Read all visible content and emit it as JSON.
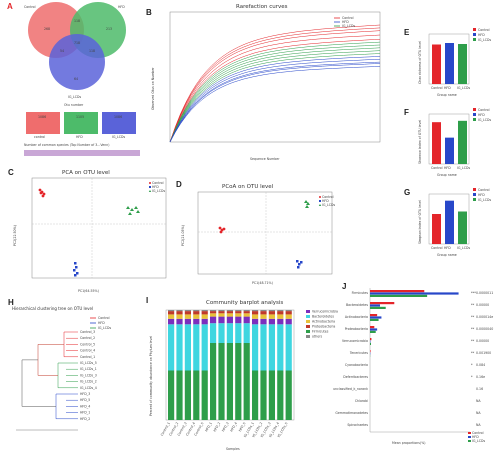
{
  "figure": {
    "letters": {
      "A": "A",
      "B": "B",
      "C": "C",
      "D": "D",
      "E": "E",
      "F": "F",
      "G": "G",
      "H": "H",
      "I": "I",
      "J": "J"
    }
  },
  "colors": {
    "control": "#e4252a",
    "hfd": "#2747c9",
    "ig": "#2e9e4a",
    "blue": "#5a63d9",
    "green": "#4dbb6a",
    "red": "#ef6d6d"
  },
  "venn": {
    "labels": [
      "Control",
      "HFD",
      "IG_LCDs"
    ],
    "values": {
      "a_only": "268",
      "b_only": "213",
      "c_only": "64",
      "ab": "118",
      "ac": "54",
      "bc": "118",
      "abc": "718"
    },
    "axis_label": "Otu number"
  },
  "bars_A": {
    "values": [
      1086,
      1105,
      1086
    ],
    "categories": [
      "control",
      "HFD",
      "IG_LCDs"
    ],
    "caption": "Number of common species (Top Number of 3...Venn)"
  },
  "chart_data": [
    {
      "type": "line",
      "panel": "B",
      "title": "Rarefaction curves",
      "xlabel": "Sequence Number",
      "ylabel": "Observed Otus on Number",
      "series": [
        {
          "name": "Control"
        },
        {
          "name": "HFD"
        },
        {
          "name": "IG_LCDs"
        }
      ]
    },
    {
      "type": "bar",
      "panel": "E",
      "ylabel": "Chao richness of OTU level",
      "xlabel": "Group name",
      "categories": [
        "Control",
        "HFD",
        "IG_LCDs"
      ],
      "values": [
        0.79,
        0.82,
        0.8
      ],
      "ylim": [
        0,
        1
      ]
    },
    {
      "type": "bar",
      "panel": "F",
      "ylabel": "Shannon index of OTU level",
      "xlabel": "Group name",
      "categories": [
        "Control",
        "HFD",
        "IG_LCDs"
      ],
      "values": [
        0.92,
        0.58,
        0.95
      ],
      "ylim": [
        0,
        1.1
      ]
    },
    {
      "type": "bar",
      "panel": "G",
      "ylabel": "Simpson index of OTU level",
      "xlabel": "Group name",
      "categories": [
        "Control",
        "HFD",
        "IG_LCDs"
      ],
      "values": [
        0.36,
        0.52,
        0.39
      ],
      "ylim": [
        0,
        0.6
      ]
    },
    {
      "type": "scatter",
      "panel": "C",
      "title": "PCA on OTU level",
      "xlabel": "PC1(64.55%)",
      "ylabel": "PC2(22.50%)"
    },
    {
      "type": "scatter",
      "panel": "D",
      "title": "PCoA on OTU level",
      "xlabel": "PC1(48.71%)",
      "ylabel": "PC2(21.05%)"
    },
    {
      "type": "bar",
      "panel": "I",
      "title": "Community barplot analysis",
      "xlabel": "Samples",
      "ylabel": "Percent of community abundance on Phylum level",
      "legend": [
        "Verrucomicrobia",
        "Bacteroidetes",
        "Actinobacteria",
        "Proteobacteria",
        "Firmicutes",
        "others"
      ]
    },
    {
      "type": "bar",
      "panel": "J",
      "xlabel": "Mean proportions(%)",
      "categories": [
        "Firmicutes",
        "Bacteroidetes",
        "Actinobacteria",
        "Proteobacteria",
        "Verrucomicrobia",
        "Tenericutes",
        "Cyanobacteria",
        "Deferribacteres",
        "unclassified_k_norank",
        "Chlorobi",
        "Gemmatimonadetes",
        "Spirochaetes"
      ],
      "pvalues": [
        "0.0000011",
        "0.00000",
        "0.000014e",
        "0.0000040",
        "0.00000",
        "0.001900",
        "0.084",
        "0.16e",
        "0.16",
        "NA",
        "NA",
        "NA"
      ],
      "series": [
        {
          "name": "Control",
          "values": [
            38,
            17,
            5,
            3,
            1,
            0.4,
            0,
            0,
            0,
            0,
            0,
            0
          ]
        },
        {
          "name": "HFD",
          "values": [
            62,
            7,
            8,
            5,
            0.3,
            0.2,
            0,
            0,
            0,
            0,
            0,
            0
          ]
        },
        {
          "name": "IG_LCDs",
          "values": [
            40,
            11,
            6,
            4,
            0.7,
            0.1,
            0,
            0,
            0,
            0,
            0,
            0
          ]
        }
      ]
    }
  ],
  "panel_H": {
    "title": "Hierarchical clustering tree on OTU level",
    "leaves": [
      "Control_3",
      "Control_2",
      "Control_5",
      "Control_4",
      "Control_1",
      "IG_LCDs_5",
      "IG_LCDs_1",
      "IG_LCDs_3",
      "IG_LCDs_2",
      "IG_LCDs_4",
      "HFD_3",
      "HFD_5",
      "HFD_4",
      "HFD_1",
      "HFD_2"
    ],
    "legend": [
      "Control",
      "HFD",
      "IG_LCDs"
    ]
  },
  "samples_I": [
    "Control_1",
    "Control_2",
    "Control_3",
    "Control_4",
    "Control_5",
    "HFD_1",
    "HFD_2",
    "HFD_3",
    "HFD_4",
    "HFD_5",
    "IG_LCDs_1",
    "IG_LCDs_2",
    "IG_LCDs_3",
    "IG_LCDs_4",
    "IG_LCDs_5"
  ],
  "J_title": "Mean proportions(%)",
  "sig": [
    "***",
    "**",
    "**",
    "**",
    "**",
    "**",
    "*",
    "*"
  ]
}
